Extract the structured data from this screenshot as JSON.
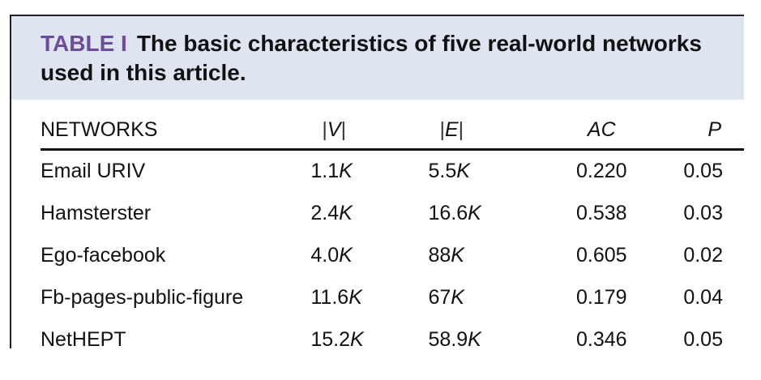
{
  "caption": {
    "label": "TABLE I",
    "text": "The basic characteristics of five real-world networks used in this article."
  },
  "table": {
    "headers": {
      "networks": "NETWORKS",
      "v": "V",
      "e": "E",
      "ac": "AC",
      "p": "P"
    },
    "rows": [
      {
        "name": "Email URIV",
        "v_num": "1.1",
        "v_unit": "K",
        "e_num": "5.5",
        "e_unit": "K",
        "ac": "0.220",
        "p": "0.05"
      },
      {
        "name": "Hamsterster",
        "v_num": "2.4",
        "v_unit": "K",
        "e_num": "16.6",
        "e_unit": "K",
        "ac": "0.538",
        "p": "0.03"
      },
      {
        "name": "Ego-facebook",
        "v_num": "4.0",
        "v_unit": "K",
        "e_num": "88",
        "e_unit": "K",
        "ac": "0.605",
        "p": "0.02"
      },
      {
        "name": "Fb-pages-public-figure",
        "v_num": "11.6",
        "v_unit": "K",
        "e_num": "67",
        "e_unit": "K",
        "ac": "0.179",
        "p": "0.04"
      },
      {
        "name": "NetHEPT",
        "v_num": "15.2",
        "v_unit": "K",
        "e_num": "58.9",
        "e_unit": "K",
        "ac": "0.346",
        "p": "0.05"
      }
    ]
  },
  "colors": {
    "caption_background": "#dfe4f1",
    "label_color": "#6d4c9b"
  }
}
